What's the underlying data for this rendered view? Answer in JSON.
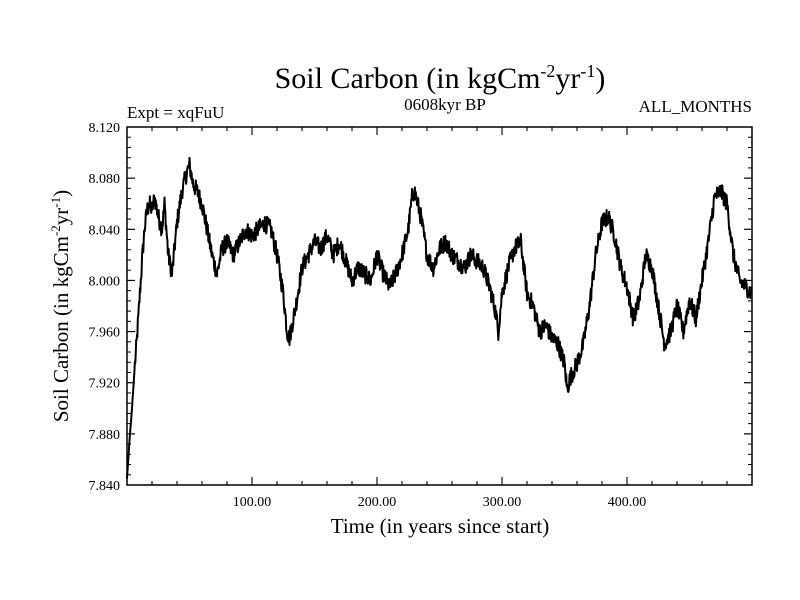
{
  "chart_data": {
    "type": "line",
    "title": {
      "main": "Soil Carbon (in kgCm",
      "sup1": "-2",
      "mid": "yr",
      "sup2": "-1",
      "end": ")"
    },
    "subtitle_left": "Expt = xqFuU",
    "subtitle_center": "0608kyr BP",
    "subtitle_right": "ALL_MONTHS",
    "xlabel": "Time (in years since start)",
    "ylabel": {
      "main": "Soil Carbon (in kgCm",
      "sup1": "-2",
      "mid": "yr",
      "sup2": "-1",
      "end": ")"
    },
    "xlim": [
      0,
      500
    ],
    "ylim": [
      7.84,
      8.12
    ],
    "xticks": [
      100,
      200,
      300,
      400
    ],
    "xtick_labels": [
      "100.00",
      "200.00",
      "300.00",
      "400.00"
    ],
    "yticks": [
      7.84,
      7.88,
      7.92,
      7.96,
      8.0,
      8.04,
      8.08,
      8.12
    ],
    "ytick_labels": [
      "7.840",
      "7.880",
      "7.920",
      "7.960",
      "8.000",
      "8.040",
      "8.080",
      "8.120"
    ],
    "series": [
      {
        "name": "Soil Carbon",
        "color": "#000000",
        "x": [
          0,
          2,
          4,
          6,
          8,
          10,
          12,
          14,
          16,
          18,
          20,
          22,
          25,
          28,
          30,
          33,
          36,
          40,
          44,
          48,
          50,
          53,
          56,
          60,
          64,
          68,
          72,
          76,
          80,
          85,
          90,
          95,
          100,
          105,
          110,
          115,
          120,
          125,
          128,
          130,
          135,
          140,
          145,
          150,
          155,
          160,
          165,
          170,
          175,
          180,
          185,
          190,
          195,
          200,
          205,
          210,
          215,
          220,
          225,
          228,
          230,
          235,
          240,
          245,
          250,
          255,
          260,
          265,
          270,
          275,
          280,
          285,
          290,
          295,
          297,
          300,
          305,
          310,
          315,
          320,
          325,
          330,
          335,
          340,
          345,
          350,
          352,
          355,
          360,
          365,
          370,
          375,
          380,
          385,
          390,
          395,
          400,
          405,
          410,
          415,
          420,
          425,
          430,
          435,
          440,
          445,
          450,
          455,
          460,
          465,
          470,
          475,
          480,
          485,
          490,
          495,
          500
        ],
        "values": [
          7.845,
          7.875,
          7.9,
          7.93,
          7.955,
          7.985,
          8.015,
          8.04,
          8.055,
          8.06,
          8.055,
          8.065,
          8.05,
          8.04,
          8.06,
          8.02,
          8.005,
          8.045,
          8.07,
          8.085,
          8.09,
          8.075,
          8.07,
          8.06,
          8.04,
          8.02,
          8.005,
          8.025,
          8.03,
          8.02,
          8.03,
          8.04,
          8.035,
          8.04,
          8.045,
          8.04,
          8.02,
          7.99,
          7.96,
          7.955,
          7.98,
          8.01,
          8.02,
          8.03,
          8.025,
          8.035,
          8.02,
          8.03,
          8.015,
          8.0,
          8.01,
          8.005,
          8.0,
          8.02,
          8.005,
          7.995,
          8.005,
          8.02,
          8.04,
          8.065,
          8.07,
          8.05,
          8.02,
          8.01,
          8.025,
          8.03,
          8.02,
          8.015,
          8.01,
          8.02,
          8.015,
          8.01,
          7.995,
          7.975,
          7.96,
          7.99,
          8.01,
          8.025,
          8.03,
          7.99,
          7.98,
          7.96,
          7.965,
          7.955,
          7.95,
          7.935,
          7.915,
          7.925,
          7.935,
          7.95,
          7.98,
          8.02,
          8.045,
          8.05,
          8.035,
          8.01,
          7.995,
          7.97,
          7.985,
          8.02,
          8.01,
          7.98,
          7.95,
          7.96,
          7.98,
          7.96,
          7.985,
          7.97,
          8.0,
          8.03,
          8.065,
          8.07,
          8.06,
          8.02,
          8.0,
          7.995,
          7.99
        ]
      }
    ]
  }
}
